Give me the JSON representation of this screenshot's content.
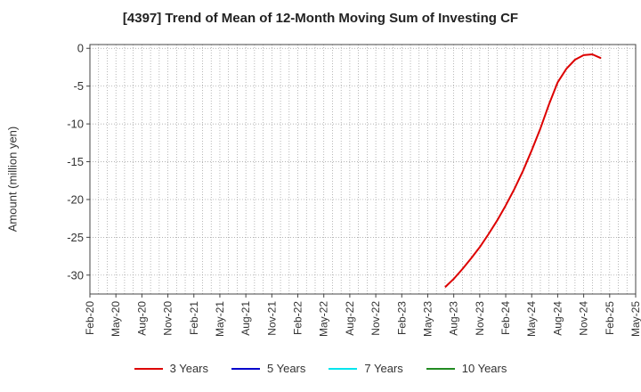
{
  "chart_data": {
    "type": "line",
    "title": "[4397]  Trend of Mean of 12-Month Moving Sum of Investing CF",
    "xlabel": "",
    "ylabel": "Amount (million yen)",
    "ylim": [
      -32.5,
      0.5
    ],
    "yticks": [
      0,
      -5,
      -10,
      -15,
      -20,
      -25,
      -30
    ],
    "x_tick_labels": [
      "Feb-20",
      "May-20",
      "Aug-20",
      "Nov-20",
      "Feb-21",
      "May-21",
      "Aug-21",
      "Nov-21",
      "Feb-22",
      "May-22",
      "Aug-22",
      "Nov-22",
      "Feb-23",
      "May-23",
      "Aug-23",
      "Nov-23",
      "Feb-24",
      "May-24",
      "Aug-24",
      "Nov-24",
      "Feb-25",
      "May-25"
    ],
    "grid": true,
    "legend_position": "bottom",
    "series": [
      {
        "name": "3 Years",
        "color": "#dd0000",
        "x": [
          "Jul-23",
          "Aug-23",
          "Sep-23",
          "Oct-23",
          "Nov-23",
          "Dec-23",
          "Jan-24",
          "Feb-24",
          "Mar-24",
          "Apr-24",
          "May-24",
          "Jun-24",
          "Jul-24",
          "Aug-24",
          "Sep-24",
          "Oct-24",
          "Nov-24",
          "Dec-24",
          "Jan-25",
          "Feb-25"
        ],
        "values": [
          -31.6,
          -30.5,
          -29.2,
          -27.8,
          -26.3,
          -24.6,
          -22.8,
          -20.8,
          -18.6,
          -16.2,
          -13.5,
          -10.6,
          -7.4,
          -4.5,
          -2.7,
          -1.5,
          -0.9,
          -0.8,
          -1.3,
          null
        ]
      },
      {
        "name": "5 Years",
        "color": "#0000cc",
        "x": [],
        "values": []
      },
      {
        "name": "7 Years",
        "color": "#00e5ee",
        "x": [],
        "values": []
      },
      {
        "name": "10 Years",
        "color": "#228b22",
        "x": [],
        "values": []
      }
    ]
  }
}
